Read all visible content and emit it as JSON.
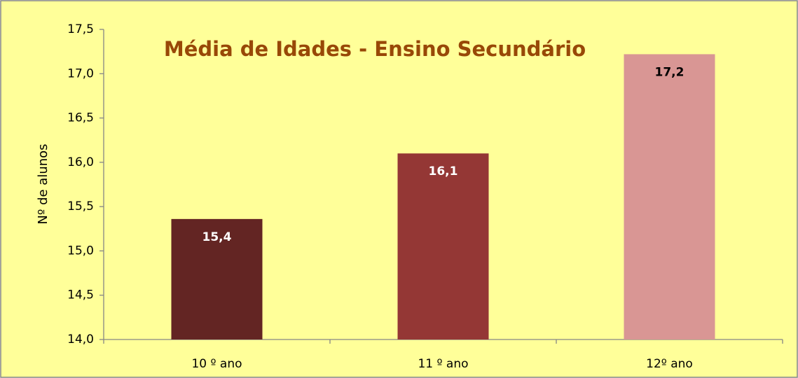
{
  "chart_data": {
    "type": "bar",
    "title": "Média de Idades - Ensino Secundário",
    "y_axis_label": "Nº de alunos",
    "categories": [
      "10 º ano",
      "11 º ano",
      "12º ano"
    ],
    "values": [
      15.36,
      16.1,
      17.22
    ],
    "value_labels": [
      "15,4",
      "16,1",
      "17,2"
    ],
    "colors": [
      "#632523",
      "#943735",
      "#d99694"
    ],
    "label_colors": [
      "#ffffff",
      "#ffffff",
      "#000000"
    ],
    "ylim": [
      14,
      17.5
    ],
    "yticks": [
      {
        "value": 14,
        "label": "14,0"
      },
      {
        "value": 14.5,
        "label": "14,5"
      },
      {
        "value": 15,
        "label": "15,0"
      },
      {
        "value": 15.5,
        "label": "15,5"
      },
      {
        "value": 16,
        "label": "16,0"
      },
      {
        "value": 16.5,
        "label": "16,5"
      },
      {
        "value": 17,
        "label": "17,0"
      },
      {
        "value": 17.5,
        "label": "17,5"
      }
    ]
  }
}
